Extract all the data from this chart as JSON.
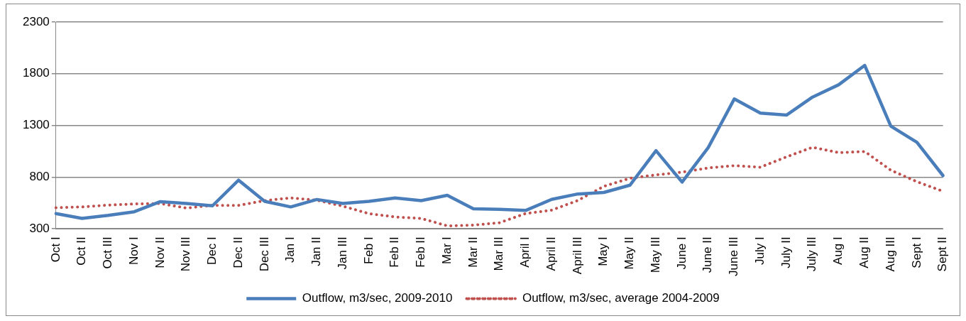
{
  "chart_data": {
    "type": "line",
    "categories": [
      "Oct I",
      "Oct II",
      "Oct III",
      "Nov I",
      "Nov II",
      "Nov III",
      "Dec I",
      "Dec II",
      "Dec III",
      "Jan I",
      "Jan II",
      "Jan III",
      "Feb I",
      "Feb II",
      "Feb II",
      "Mar I",
      "Mar II",
      "Mar III",
      "April I",
      "April II",
      "April III",
      "May I",
      "May II",
      "May III",
      "June I",
      "June II",
      "June III",
      "July I",
      "July II",
      "July III",
      "Aug I",
      "Aug II",
      "Aug III",
      "Sept I",
      "Sept II"
    ],
    "series": [
      {
        "name": "Outflow, m3/sec, 2009-2010",
        "color": "#4a7ebb",
        "line_style": "solid",
        "values": [
          447,
          401,
          430,
          465,
          563,
          545,
          523,
          771,
          566,
          512,
          584,
          545,
          566,
          599,
          573,
          624,
          494,
          489,
          478,
          585,
          637,
          652,
          722,
          1056,
          752,
          1085,
          1556,
          1419,
          1400,
          1574,
          1693,
          1881,
          1293,
          1137,
          815
        ]
      },
      {
        "name": "Outflow, m3/sec, average 2004-2009",
        "color": "#c0504d",
        "line_style": "dotted",
        "values": [
          505,
          512,
          530,
          541,
          545,
          501,
          527,
          527,
          573,
          599,
          577,
          519,
          447,
          415,
          401,
          329,
          336,
          359,
          448,
          481,
          574,
          711,
          789,
          822,
          848,
          889,
          911,
          896,
          996,
          1089,
          1037,
          1048,
          867,
          756,
          663
        ]
      }
    ],
    "ylim": [
      300,
      2300
    ],
    "yticks": [
      300,
      800,
      1300,
      1800,
      2300
    ],
    "grid": "y",
    "legend": "bottom",
    "marker": "none"
  }
}
